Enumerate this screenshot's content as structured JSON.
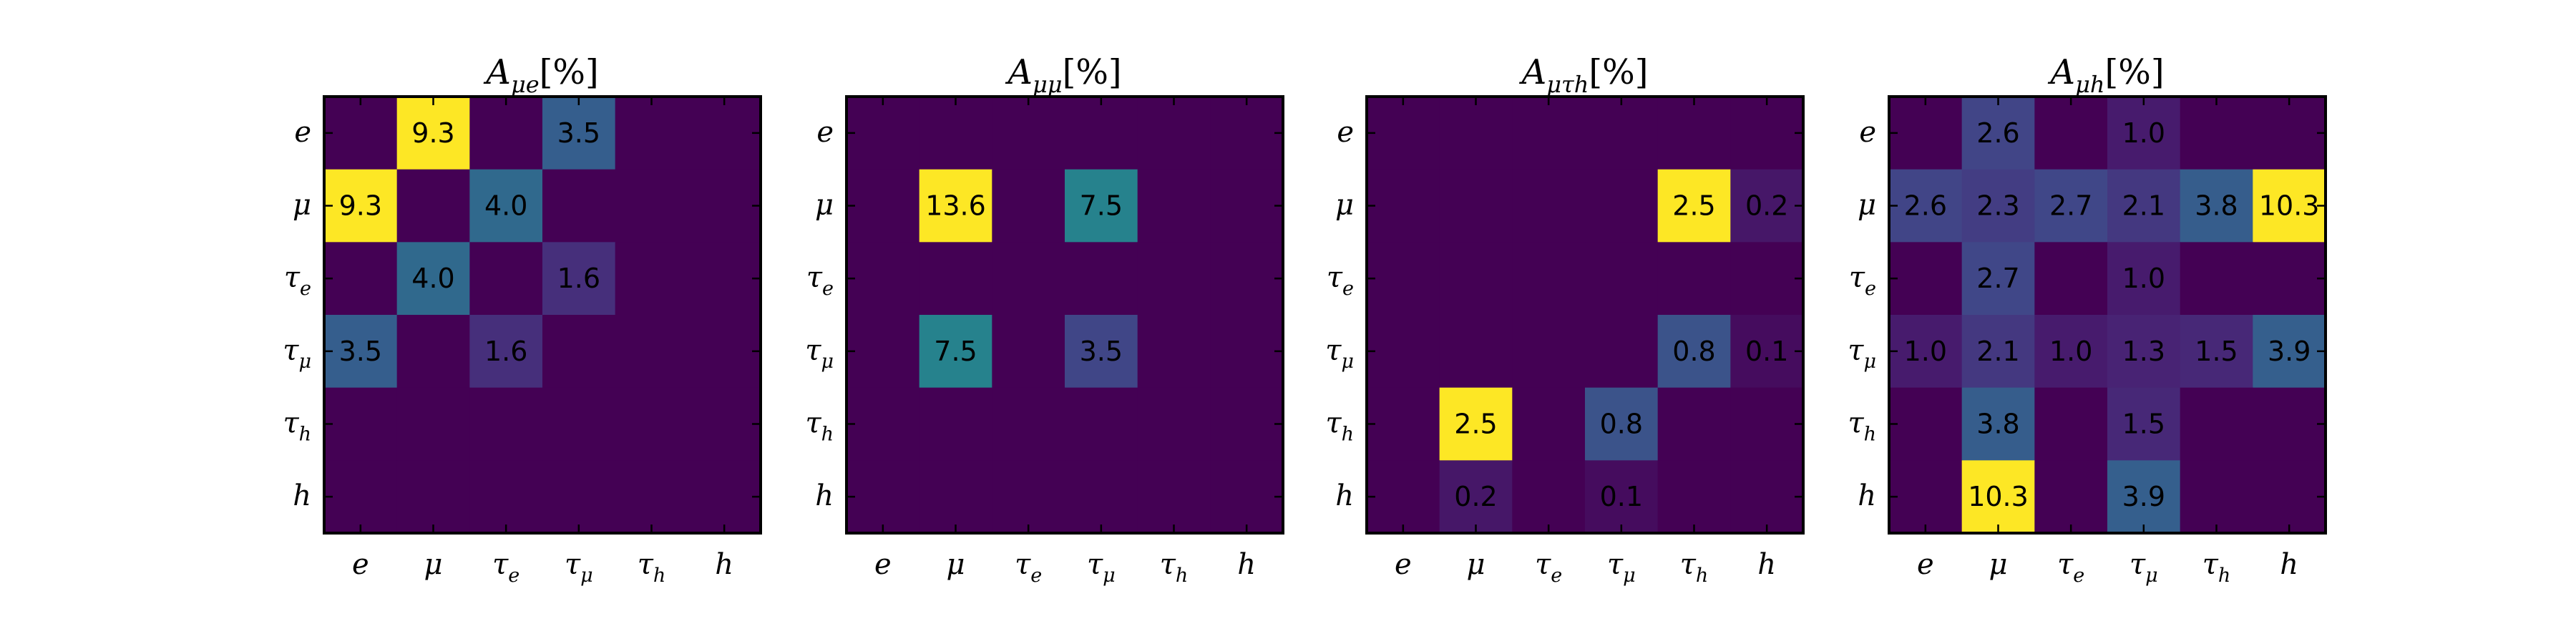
{
  "chart_data": [
    {
      "type": "heatmap",
      "title": "Aμe[%]",
      "x_categories": [
        "e",
        "μ",
        "τe",
        "τμ",
        "τh",
        "h"
      ],
      "y_categories": [
        "e",
        "μ",
        "τe",
        "τμ",
        "τh",
        "h"
      ],
      "vmax": 9.3,
      "values": [
        [
          0,
          9.3,
          0,
          3.5,
          0,
          0
        ],
        [
          9.3,
          0,
          4.0,
          0,
          0,
          0
        ],
        [
          0,
          4.0,
          0,
          1.6,
          0,
          0
        ],
        [
          3.5,
          0,
          1.6,
          0,
          0,
          0
        ],
        [
          0,
          0,
          0,
          0,
          0,
          0
        ],
        [
          0,
          0,
          0,
          0,
          0,
          0
        ]
      ]
    },
    {
      "type": "heatmap",
      "title": "Aμμ[%]",
      "x_categories": [
        "e",
        "μ",
        "τe",
        "τμ",
        "τh",
        "h"
      ],
      "y_categories": [
        "e",
        "μ",
        "τe",
        "τμ",
        "τh",
        "h"
      ],
      "vmax": 13.6,
      "values": [
        [
          0,
          0,
          0,
          0,
          0,
          0
        ],
        [
          0,
          13.6,
          0,
          7.5,
          0,
          0
        ],
        [
          0,
          0,
          0,
          0,
          0,
          0
        ],
        [
          0,
          7.5,
          0,
          3.5,
          0,
          0
        ],
        [
          0,
          0,
          0,
          0,
          0,
          0
        ],
        [
          0,
          0,
          0,
          0,
          0,
          0
        ]
      ]
    },
    {
      "type": "heatmap",
      "title": "Aμτh[%]",
      "x_categories": [
        "e",
        "μ",
        "τe",
        "τμ",
        "τh",
        "h"
      ],
      "y_categories": [
        "e",
        "μ",
        "τe",
        "τμ",
        "τh",
        "h"
      ],
      "vmax": 2.5,
      "values": [
        [
          0,
          0,
          0,
          0,
          0,
          0
        ],
        [
          0,
          0,
          0,
          0,
          2.5,
          0.2
        ],
        [
          0,
          0,
          0,
          0,
          0,
          0
        ],
        [
          0,
          0,
          0,
          0,
          0.8,
          0.1
        ],
        [
          0,
          2.5,
          0,
          0.8,
          0,
          0
        ],
        [
          0,
          0.2,
          0,
          0.1,
          0,
          0
        ]
      ]
    },
    {
      "type": "heatmap",
      "title": "Aμh[%]",
      "x_categories": [
        "e",
        "μ",
        "τe",
        "τμ",
        "τh",
        "h"
      ],
      "y_categories": [
        "e",
        "μ",
        "τe",
        "τμ",
        "τh",
        "h"
      ],
      "vmax": 10.3,
      "values": [
        [
          0,
          2.6,
          0,
          1.0,
          0,
          0
        ],
        [
          2.6,
          2.3,
          2.7,
          2.1,
          3.8,
          10.3
        ],
        [
          0,
          2.7,
          0,
          1.0,
          0,
          0
        ],
        [
          1.0,
          2.1,
          1.0,
          1.3,
          1.5,
          3.9
        ],
        [
          0,
          3.8,
          0,
          1.5,
          0,
          0
        ],
        [
          0,
          10.3,
          0,
          3.9,
          0,
          0
        ]
      ]
    }
  ]
}
